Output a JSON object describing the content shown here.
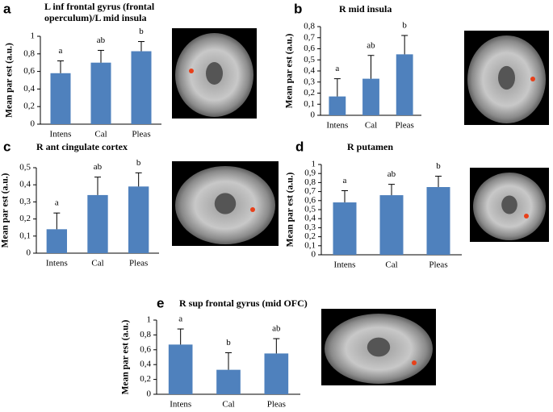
{
  "chart_data": [
    {
      "type": "bar",
      "panel": "a",
      "title": [
        "L inf frontal gyrus (frontal",
        "operculum)/L  mid insula"
      ],
      "ylabel": "Mean par est (a.u.)",
      "categories": [
        "Intens",
        "Cal",
        "Pleas"
      ],
      "values": [
        0.58,
        0.7,
        0.83
      ],
      "errors": [
        0.14,
        0.14,
        0.11
      ],
      "annotations": [
        "a",
        "ab",
        "b"
      ],
      "color": "#4f81bd",
      "ylim": [
        0,
        1
      ],
      "yticks": [
        0,
        {
          "value": 0.2,
          "label": "0,2"
        },
        {
          "value": 0.4,
          "label": "0,4"
        },
        {
          "value": 0.6,
          "label": "0,6"
        },
        {
          "value": 0.8,
          "label": "0,8"
        },
        1
      ]
    },
    {
      "type": "bar",
      "panel": "b",
      "title": [
        "R mid insula"
      ],
      "ylabel": "Mean par est (a.u.)",
      "categories": [
        "Intens",
        "Cal",
        "Pleas"
      ],
      "values": [
        0.17,
        0.33,
        0.55
      ],
      "errors": [
        0.16,
        0.21,
        0.17
      ],
      "annotations": [
        "a",
        "ab",
        "b"
      ],
      "color": "#4f81bd",
      "ylim": [
        0,
        0.8
      ],
      "yticks": [
        0,
        {
          "value": 0.1,
          "label": "0,1"
        },
        {
          "value": 0.2,
          "label": "0,2"
        },
        {
          "value": 0.3,
          "label": "0,3"
        },
        {
          "value": 0.4,
          "label": "0,4"
        },
        {
          "value": 0.5,
          "label": "0,5"
        },
        {
          "value": 0.6,
          "label": "0,6"
        },
        {
          "value": 0.7,
          "label": "0,7"
        },
        {
          "value": 0.8,
          "label": "0,8"
        }
      ]
    },
    {
      "type": "bar",
      "panel": "c",
      "title": [
        "R ant cingulate cortex"
      ],
      "ylabel": "Mean par est (a.u.)",
      "categories": [
        "Intens",
        "Cal",
        "Pleas"
      ],
      "values": [
        0.14,
        0.34,
        0.39
      ],
      "errors": [
        0.095,
        0.105,
        0.08
      ],
      "annotations": [
        "a",
        "ab",
        "b"
      ],
      "color": "#4f81bd",
      "ylim": [
        0,
        0.5
      ],
      "yticks": [
        0,
        {
          "value": 0.1,
          "label": "0,1"
        },
        {
          "value": 0.2,
          "label": "0,2"
        },
        {
          "value": 0.3,
          "label": "0,3"
        },
        {
          "value": 0.4,
          "label": "0,4"
        },
        {
          "value": 0.5,
          "label": "0,5"
        }
      ]
    },
    {
      "type": "bar",
      "panel": "d",
      "title": [
        "R putamen"
      ],
      "ylabel": "Mean par est (a.u.)",
      "categories": [
        "Intens",
        "Cal",
        "Pleas"
      ],
      "values": [
        0.58,
        0.66,
        0.75
      ],
      "errors": [
        0.13,
        0.12,
        0.12
      ],
      "annotations": [
        "a",
        "ab",
        "b"
      ],
      "color": "#4f81bd",
      "ylim": [
        0,
        1
      ],
      "yticks": [
        0,
        {
          "value": 0.1,
          "label": "0,1"
        },
        {
          "value": 0.2,
          "label": "0,2"
        },
        {
          "value": 0.3,
          "label": "0,3"
        },
        {
          "value": 0.4,
          "label": "0,4"
        },
        {
          "value": 0.5,
          "label": "0,5"
        },
        {
          "value": 0.6,
          "label": "0,6"
        },
        {
          "value": 0.7,
          "label": "0,7"
        },
        {
          "value": 0.8,
          "label": "0,8"
        },
        {
          "value": 0.9,
          "label": "0,9"
        },
        1
      ]
    },
    {
      "type": "bar",
      "panel": "e",
      "title": [
        "R sup frontal gyrus (mid OFC)"
      ],
      "ylabel": "Mean par est (a.u.)",
      "categories": [
        "Intens",
        "Cal",
        "Pleas"
      ],
      "values": [
        0.67,
        0.33,
        0.55
      ],
      "errors": [
        0.21,
        0.23,
        0.2
      ],
      "annotations": [
        "a",
        "b",
        "ab"
      ],
      "color": "#4f81bd",
      "ylim": [
        0,
        1
      ],
      "yticks": [
        0,
        {
          "value": 0.2,
          "label": "0,2"
        },
        {
          "value": 0.4,
          "label": "0,4"
        },
        {
          "value": 0.6,
          "label": "0,6"
        },
        {
          "value": 0.8,
          "label": "0,8"
        },
        1
      ]
    }
  ]
}
